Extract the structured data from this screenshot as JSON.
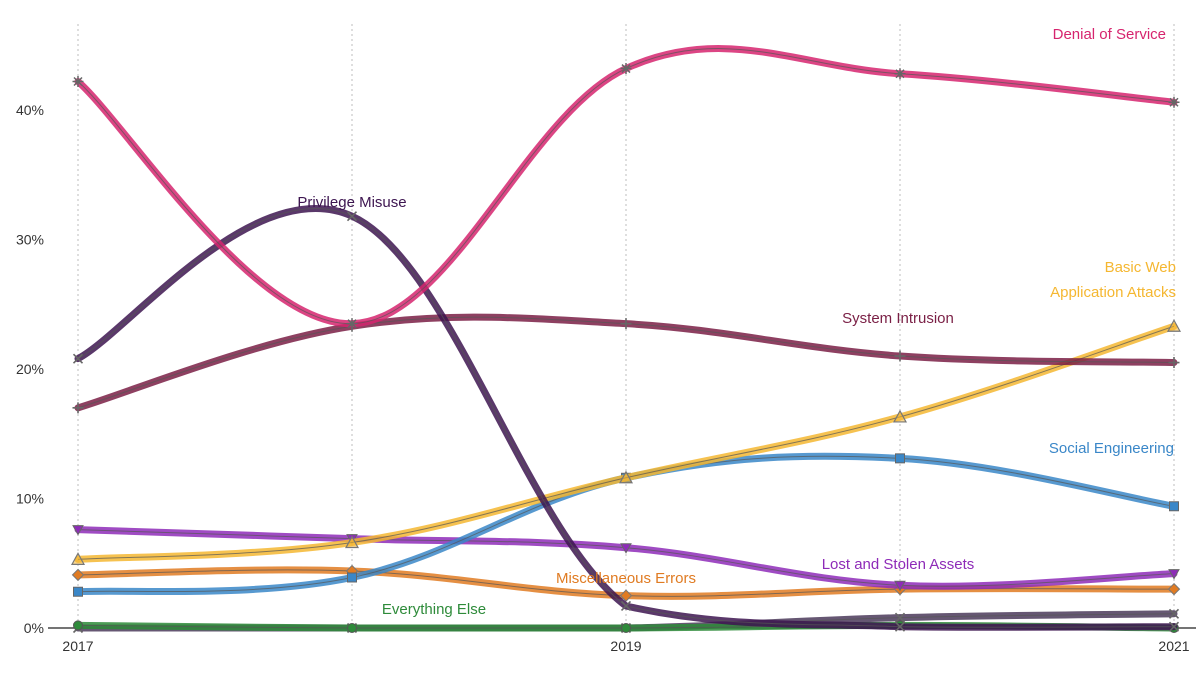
{
  "chart_data": {
    "type": "line",
    "title": "",
    "xlabel": "",
    "ylabel": "",
    "x_ticks": [
      "2017",
      "2019",
      "2021"
    ],
    "x_range": [
      2017,
      2021
    ],
    "y_ticks": [
      "0%",
      "10%",
      "20%",
      "30%",
      "40%"
    ],
    "y_range": [
      0,
      45
    ],
    "grid": "vertical dotted at each data year",
    "x": [
      2017,
      2018,
      2019,
      2020,
      2021
    ],
    "series": [
      {
        "name": "Denial of Service",
        "color": "#d6246e",
        "marker": "star",
        "values": [
          42.2,
          23.5,
          43.2,
          42.8,
          40.6
        ]
      },
      {
        "name": "Privilege Misuse",
        "color": "#3d1550",
        "marker": "x",
        "values": [
          20.8,
          31.8,
          1.7,
          0.1,
          0.1
        ]
      },
      {
        "name": "System Intrusion",
        "color": "#7a1f45",
        "marker": "plus",
        "values": [
          17.0,
          23.3,
          23.5,
          21.0,
          20.5
        ]
      },
      {
        "name": "Basic Web Application Attacks",
        "label_lines": [
          "Basic Web",
          "Application Attacks"
        ],
        "color": "#f5b731",
        "marker": "triangle",
        "values": [
          5.3,
          6.6,
          11.6,
          16.3,
          23.3
        ]
      },
      {
        "name": "Social Engineering",
        "color": "#3a87c8",
        "marker": "square",
        "values": [
          2.8,
          3.9,
          11.6,
          13.1,
          9.4
        ]
      },
      {
        "name": "Lost and Stolen Assets",
        "color": "#8e2bb8",
        "marker": "triangle-down",
        "values": [
          7.6,
          6.9,
          6.2,
          3.3,
          4.2
        ]
      },
      {
        "name": "Miscellaneous Errors",
        "color": "#e07b22",
        "marker": "diamond",
        "values": [
          4.1,
          4.4,
          2.5,
          3.0,
          3.0
        ]
      },
      {
        "name": "Everything Else",
        "color": "#2e8b3a",
        "marker": "circle",
        "values": [
          0.2,
          0.0,
          0.0,
          0.2,
          0.0
        ]
      },
      {
        "name": "",
        "color": "#4b3a5a",
        "marker": "x",
        "values": [
          0.0,
          0.0,
          0.0,
          0.8,
          1.1
        ]
      }
    ]
  }
}
